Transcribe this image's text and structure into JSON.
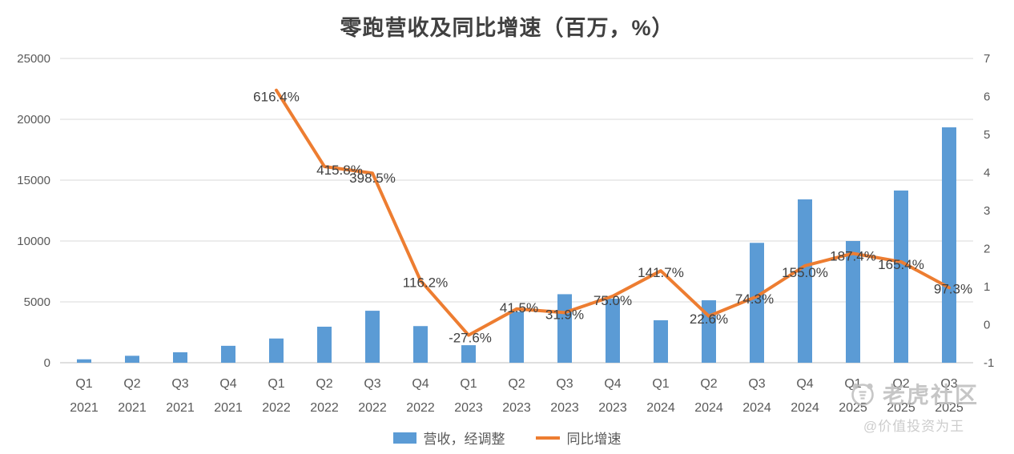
{
  "title": "零跑营收及同比增速（百万，%）",
  "watermark": {
    "brand": "老虎社区",
    "handle": "@价值投资为王"
  },
  "colors": {
    "bar": "#5B9BD5",
    "line": "#ED7D31",
    "title_text": "#404040",
    "axis_text": "#595959",
    "gridline": "#D9D9D9",
    "axis_line": "#BFBFBF"
  },
  "chart_data": {
    "type": "combo",
    "title": "零跑营收及同比增速（百万，%）",
    "categories": [
      "Q1 2021",
      "Q2 2021",
      "Q3 2021",
      "Q4 2021",
      "Q1 2022",
      "Q2 2022",
      "Q3 2022",
      "Q4 2022",
      "Q1 2023",
      "Q2 2023",
      "Q3 2023",
      "Q4 2023",
      "Q1 2024",
      "Q2 2024",
      "Q3 2024",
      "Q4 2024",
      "Q1 2025",
      "Q2 2025",
      "Q3 2025"
    ],
    "series": [
      {
        "name": "营收，经调整",
        "type": "bar",
        "axis": "left",
        "color": "#5B9BD5",
        "values": [
          280,
          570,
          860,
          1390,
          1990,
          2960,
          4270,
          3010,
          1440,
          4190,
          5630,
          5260,
          3490,
          5130,
          9850,
          13420,
          10000,
          14150,
          19340
        ]
      },
      {
        "name": "同比增速",
        "type": "line",
        "axis": "right",
        "color": "#ED7D31",
        "values": [
          null,
          null,
          null,
          null,
          616.4,
          415.8,
          398.5,
          116.2,
          -27.6,
          41.5,
          31.9,
          75.0,
          141.7,
          22.6,
          74.3,
          155.0,
          187.4,
          165.4,
          97.3
        ],
        "labels": [
          null,
          null,
          null,
          null,
          "616.4%",
          "415.8%",
          "398.5%",
          "116.2%",
          "-27.6%",
          "41.5%",
          "31.9%",
          "75.0%",
          "141.7%",
          "22.6%",
          "74.3%",
          "155.0%",
          "187.4%",
          "165.4%",
          "97.3%"
        ]
      }
    ],
    "left_axis": {
      "min": 0,
      "max": 25000,
      "step": 5000,
      "ticks": [
        0,
        5000,
        10000,
        15000,
        20000,
        25000
      ]
    },
    "right_axis": {
      "min": -1,
      "max": 7,
      "step": 1,
      "ticks": [
        -1,
        0,
        1,
        2,
        3,
        4,
        5,
        6,
        7
      ]
    },
    "grid": "horizontal",
    "legend_position": "bottom"
  }
}
